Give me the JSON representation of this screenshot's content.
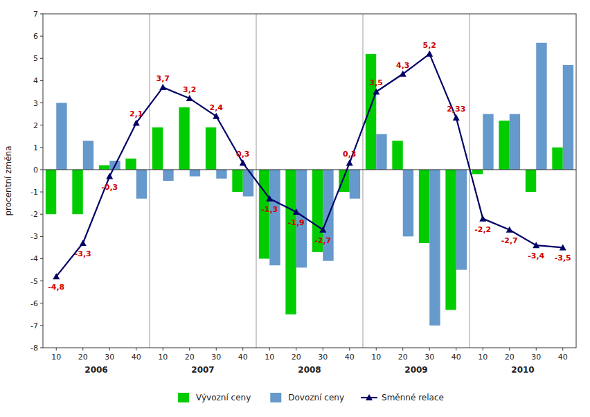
{
  "chart_data": {
    "type": "bar",
    "y_label": "procentní změna",
    "categories": [
      "10",
      "20",
      "30",
      "40",
      "10",
      "20",
      "30",
      "40",
      "10",
      "20",
      "30",
      "40",
      "10",
      "20",
      "30",
      "40",
      "10",
      "20",
      "30",
      "40"
    ],
    "annotations": [
      "2006",
      "2007",
      "2008",
      "2009",
      "2010"
    ],
    "series": [
      {
        "name": "Vývozní ceny",
        "type": "bar",
        "color": "#00cc00",
        "values": [
          -2.0,
          -2.0,
          0.2,
          0.5,
          1.9,
          2.8,
          1.9,
          -1.0,
          -4.0,
          -6.5,
          -3.7,
          -1.0,
          5.2,
          1.3,
          -3.3,
          -6.3,
          -0.2,
          2.2,
          -1.0,
          1.0
        ]
      },
      {
        "name": "Dovozní ceny",
        "type": "bar",
        "color": "#6699cc",
        "values": [
          3.0,
          1.3,
          0.4,
          -1.3,
          -0.5,
          -0.3,
          -0.4,
          -1.2,
          -4.3,
          -4.4,
          -4.1,
          -1.3,
          1.6,
          -3.0,
          -7.0,
          -4.5,
          2.5,
          2.5,
          5.7,
          4.7
        ]
      },
      {
        "name": "Směnné relace",
        "type": "line",
        "color": "#000066",
        "marker": "triangle",
        "values": [
          -4.8,
          -3.3,
          -0.3,
          2.1,
          3.7,
          3.2,
          2.4,
          0.3,
          -1.3,
          -1.9,
          -2.7,
          0.3,
          3.5,
          4.3,
          5.2,
          2.33,
          -2.2,
          -2.7,
          -3.4,
          -3.5
        ],
        "value_labels": [
          "-4,8",
          "-3,3",
          "-0,3",
          "2,1",
          "3,7",
          "3,2",
          "2,4",
          "0,3",
          "-1,3",
          "-1,9",
          "-2,7",
          "0,3",
          "3,5",
          "4,3",
          "5,2",
          "2,33",
          "-2,2",
          "-2,7",
          "-3,4",
          "-3,5"
        ]
      }
    ],
    "data_labels": true,
    "ylim": [
      -8,
      7
    ],
    "yticks": [
      -8,
      -7,
      -6,
      -5,
      -4,
      -3,
      -2,
      -1,
      0,
      1,
      2,
      3,
      4,
      5,
      6,
      7
    ],
    "grid": false,
    "legend": "bottom"
  }
}
